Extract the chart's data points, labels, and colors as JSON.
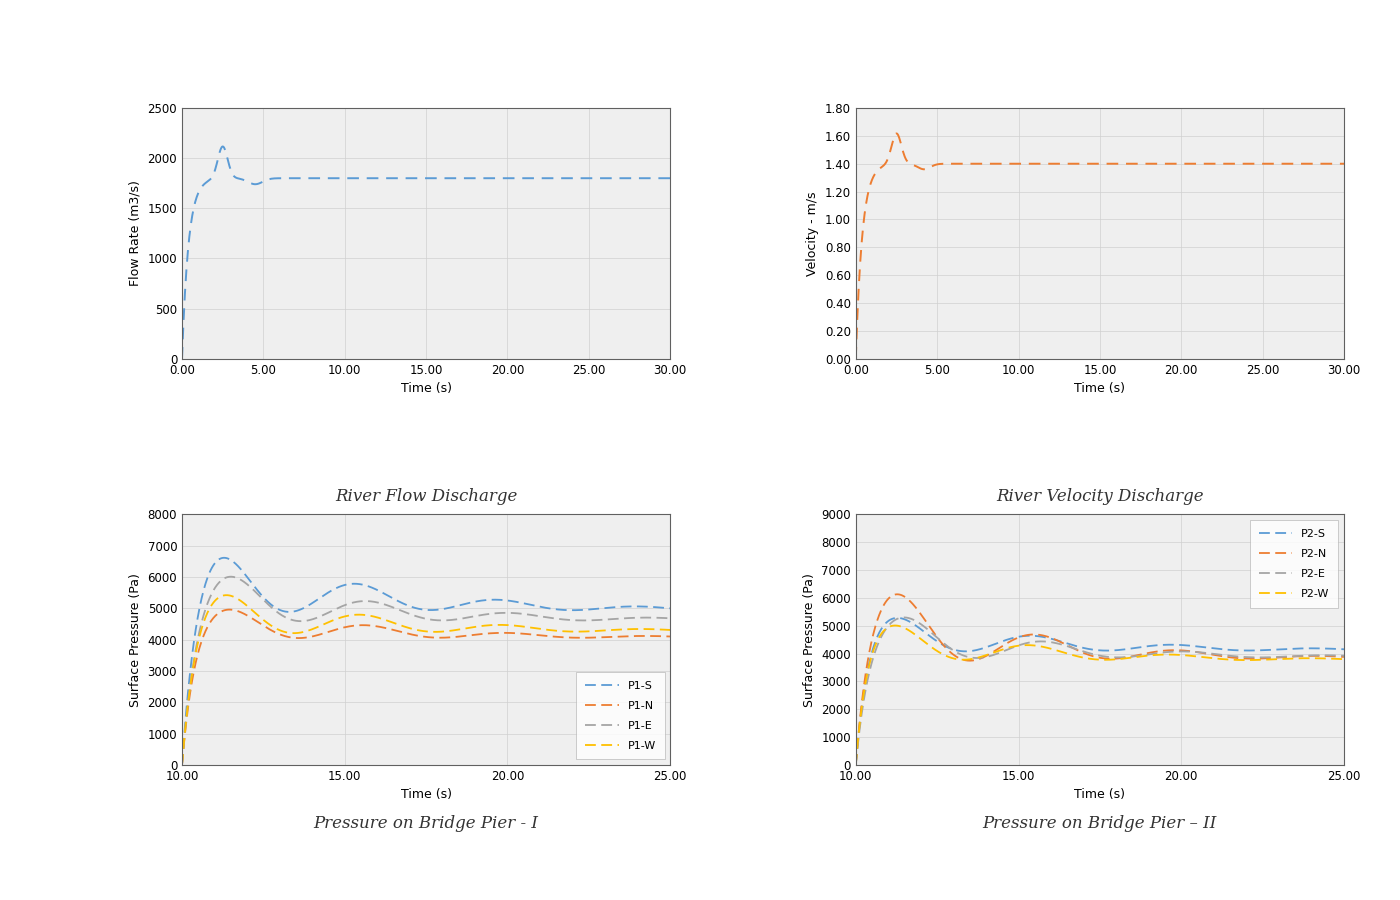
{
  "fig_width": 14.0,
  "fig_height": 9.0,
  "bg_color": "#ffffff",
  "plot1": {
    "title": "River Flow Discharge",
    "xlabel": "Time (s)",
    "ylabel": "Flow Rate (m3/s)",
    "xlim": [
      0,
      30
    ],
    "ylim": [
      0,
      2500
    ],
    "xticks": [
      0.0,
      5.0,
      10.0,
      15.0,
      20.0,
      25.0,
      30.0
    ],
    "yticks": [
      0,
      500,
      1000,
      1500,
      2000,
      2500
    ],
    "line_color": "#5B9BD5",
    "line_style": "--"
  },
  "plot2": {
    "title": "River Velocity Discharge",
    "xlabel": "Time (s)",
    "ylabel": "Velocity - m/s",
    "xlim": [
      0,
      30
    ],
    "ylim": [
      0.0,
      1.8
    ],
    "xticks": [
      0.0,
      5.0,
      10.0,
      15.0,
      20.0,
      25.0,
      30.0
    ],
    "yticks": [
      0.0,
      0.2,
      0.4,
      0.6,
      0.8,
      1.0,
      1.2,
      1.4,
      1.6,
      1.8
    ],
    "line_color": "#ED7D31",
    "line_style": "--"
  },
  "plot3": {
    "title": "Pressure on Bridge Pier - I",
    "xlabel": "Time (s)",
    "ylabel": "Surface Pressure (Pa)",
    "xlim": [
      10,
      25
    ],
    "ylim": [
      0,
      8000
    ],
    "xticks": [
      10.0,
      15.0,
      20.0,
      25.0
    ],
    "yticks": [
      0,
      1000,
      2000,
      3000,
      4000,
      5000,
      6000,
      7000,
      8000
    ],
    "series": [
      {
        "label": "P1-S",
        "color": "#5B9BD5",
        "style": "--"
      },
      {
        "label": "P1-N",
        "color": "#ED7D31",
        "style": "--"
      },
      {
        "label": "P1-E",
        "color": "#A5A5A5",
        "style": "--"
      },
      {
        "label": "P1-W",
        "color": "#FFC000",
        "style": "--"
      }
    ]
  },
  "plot4": {
    "title": "Pressure on Bridge Pier – II",
    "xlabel": "Time (s)",
    "ylabel": "Surface Pressure (Pa)",
    "xlim": [
      10,
      25
    ],
    "ylim": [
      0,
      9000
    ],
    "xticks": [
      10.0,
      15.0,
      20.0,
      25.0
    ],
    "yticks": [
      0,
      1000,
      2000,
      3000,
      4000,
      5000,
      6000,
      7000,
      8000,
      9000
    ],
    "series": [
      {
        "label": "P2-S",
        "color": "#5B9BD5",
        "style": "--"
      },
      {
        "label": "P2-N",
        "color": "#ED7D31",
        "style": "--"
      },
      {
        "label": "P2-E",
        "color": "#A5A5A5",
        "style": "--"
      },
      {
        "label": "P2-W",
        "color": "#FFC000",
        "style": "--"
      }
    ]
  },
  "title_fontsize": 12,
  "label_fontsize": 9,
  "tick_fontsize": 8.5,
  "legend_fontsize": 8,
  "grid_color": "#D0D0D0",
  "axis_bg": "#EFEFEF"
}
